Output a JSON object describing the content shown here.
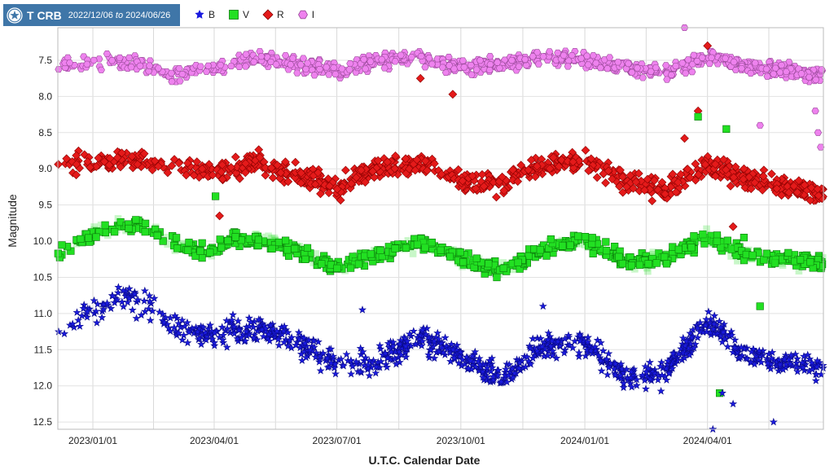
{
  "header": {
    "star_name": "T CRB",
    "date_from": "2022/12/06",
    "date_sep": "to",
    "date_to": "2024/06/26"
  },
  "chart_data": {
    "type": "scatter",
    "xlabel": "U.T.C. Calendar Date",
    "ylabel": "Magnitude",
    "x_type": "date",
    "xlim": [
      "2022/12/06",
      "2024/06/26"
    ],
    "ylim": [
      12.6,
      7.05
    ],
    "y_inverted": true,
    "grid": true,
    "legend_position": "top-left",
    "x_ticks": [
      "2023/01/01",
      "2023/04/01",
      "2023/07/01",
      "2023/10/01",
      "2024/01/01",
      "2024/04/01"
    ],
    "y_ticks": [
      7.5,
      8.0,
      8.5,
      9.0,
      9.5,
      10.0,
      10.5,
      11.0,
      11.5,
      12.0,
      12.5
    ],
    "series": [
      {
        "name": "B",
        "color": "#1a1adf",
        "marker": "star",
        "trend": [
          [
            "2022/12/06",
            11.35
          ],
          [
            "2022/12/20",
            11.1
          ],
          [
            "2023/01/01",
            10.95
          ],
          [
            "2023/01/20",
            10.75
          ],
          [
            "2023/02/01",
            10.8
          ],
          [
            "2023/02/20",
            11.05
          ],
          [
            "2023/03/01",
            11.2
          ],
          [
            "2023/04/01",
            11.3
          ],
          [
            "2023/05/01",
            11.2
          ],
          [
            "2023/06/01",
            11.4
          ],
          [
            "2023/07/01",
            11.7
          ],
          [
            "2023/08/01",
            11.65
          ],
          [
            "2023/09/01",
            11.35
          ],
          [
            "2023/10/01",
            11.6
          ],
          [
            "2023/11/01",
            11.9
          ],
          [
            "2023/12/01",
            11.45
          ],
          [
            "2024/01/01",
            11.4
          ],
          [
            "2024/02/01",
            11.9
          ],
          [
            "2024/03/01",
            11.8
          ],
          [
            "2024/04/01",
            11.1
          ],
          [
            "2024/05/01",
            11.6
          ],
          [
            "2024/06/26",
            11.75
          ]
        ],
        "outliers": [
          [
            "2024/04/12",
            12.1
          ],
          [
            "2024/04/20",
            12.25
          ],
          [
            "2024/05/20",
            12.5
          ],
          [
            "2024/04/05",
            12.6
          ],
          [
            "2023/12/01",
            10.9
          ],
          [
            "2023/07/20",
            10.95
          ]
        ]
      },
      {
        "name": "V",
        "color": "#22e022",
        "marker": "square",
        "trend": [
          [
            "2022/12/06",
            10.2
          ],
          [
            "2022/12/20",
            10.0
          ],
          [
            "2023/01/01",
            9.9
          ],
          [
            "2023/01/20",
            9.75
          ],
          [
            "2023/02/10",
            9.8
          ],
          [
            "2023/03/01",
            10.05
          ],
          [
            "2023/04/01",
            10.15
          ],
          [
            "2023/04/15",
            9.95
          ],
          [
            "2023/05/10",
            10.0
          ],
          [
            "2023/06/01",
            10.15
          ],
          [
            "2023/07/01",
            10.35
          ],
          [
            "2023/08/01",
            10.2
          ],
          [
            "2023/09/01",
            10.0
          ],
          [
            "2023/10/01",
            10.25
          ],
          [
            "2023/11/01",
            10.4
          ],
          [
            "2023/12/01",
            10.1
          ],
          [
            "2024/01/01",
            10.0
          ],
          [
            "2024/02/01",
            10.3
          ],
          [
            "2024/03/01",
            10.25
          ],
          [
            "2024/04/01",
            9.95
          ],
          [
            "2024/05/01",
            10.2
          ],
          [
            "2024/06/26",
            10.3
          ]
        ],
        "outliers": [
          [
            "2023/04/02",
            9.38
          ],
          [
            "2024/03/25",
            8.28
          ],
          [
            "2024/04/15",
            8.45
          ],
          [
            "2024/05/10",
            10.9
          ],
          [
            "2024/04/10",
            12.1
          ],
          [
            "2024/04/28",
            9.95
          ]
        ]
      },
      {
        "name": "R",
        "color": "#e41a1a",
        "marker": "diamond",
        "trend": [
          [
            "2022/12/06",
            8.95
          ],
          [
            "2023/01/01",
            8.9
          ],
          [
            "2023/02/01",
            8.85
          ],
          [
            "2023/03/01",
            9.0
          ],
          [
            "2023/04/01",
            9.05
          ],
          [
            "2023/05/01",
            8.9
          ],
          [
            "2023/06/01",
            9.1
          ],
          [
            "2023/07/01",
            9.25
          ],
          [
            "2023/08/01",
            9.0
          ],
          [
            "2023/09/01",
            8.95
          ],
          [
            "2023/10/01",
            9.15
          ],
          [
            "2023/11/01",
            9.2
          ],
          [
            "2023/12/01",
            8.95
          ],
          [
            "2024/01/01",
            8.9
          ],
          [
            "2024/02/01",
            9.15
          ],
          [
            "2024/03/01",
            9.3
          ],
          [
            "2024/04/01",
            8.95
          ],
          [
            "2024/05/01",
            9.15
          ],
          [
            "2024/06/26",
            9.35
          ]
        ],
        "outliers": [
          [
            "2023/09/01",
            7.75
          ],
          [
            "2023/09/25",
            7.97
          ],
          [
            "2024/03/25",
            8.2
          ],
          [
            "2024/03/15",
            8.58
          ],
          [
            "2024/04/01",
            7.3
          ],
          [
            "2023/04/05",
            9.65
          ],
          [
            "2024/04/20",
            9.8
          ]
        ]
      },
      {
        "name": "I",
        "color": "#ee82ee",
        "marker": "hexagon",
        "trend": [
          [
            "2022/12/06",
            7.6
          ],
          [
            "2023/01/01",
            7.5
          ],
          [
            "2023/02/01",
            7.55
          ],
          [
            "2023/03/01",
            7.7
          ],
          [
            "2023/04/01",
            7.6
          ],
          [
            "2023/05/01",
            7.45
          ],
          [
            "2023/06/01",
            7.55
          ],
          [
            "2023/07/01",
            7.65
          ],
          [
            "2023/08/01",
            7.5
          ],
          [
            "2023/09/01",
            7.45
          ],
          [
            "2023/10/01",
            7.6
          ],
          [
            "2023/11/01",
            7.55
          ],
          [
            "2023/12/01",
            7.45
          ],
          [
            "2024/01/01",
            7.5
          ],
          [
            "2024/02/01",
            7.6
          ],
          [
            "2024/03/01",
            7.7
          ],
          [
            "2024/04/01",
            7.45
          ],
          [
            "2024/05/01",
            7.6
          ],
          [
            "2024/06/26",
            7.7
          ]
        ],
        "outliers": [
          [
            "2024/03/15",
            7.05
          ],
          [
            "2024/06/20",
            8.2
          ],
          [
            "2024/06/22",
            8.5
          ],
          [
            "2024/06/24",
            8.7
          ],
          [
            "2024/05/10",
            8.4
          ]
        ]
      }
    ]
  }
}
